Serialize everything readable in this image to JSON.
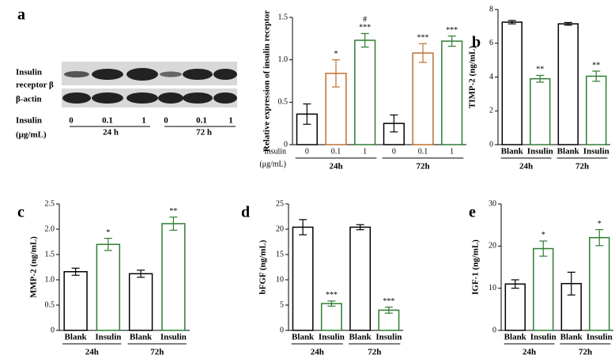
{
  "blot": {
    "label": "a",
    "row_labels": [
      "Insulin",
      "receptor β",
      "β-actin"
    ],
    "x_label": [
      "Insulin",
      "(μg/mL)"
    ],
    "lanes": [
      "0",
      "0.1",
      "1",
      "0",
      "0.1",
      "1"
    ],
    "groups": [
      "24 h",
      "72 h"
    ]
  },
  "chart_data": [
    {
      "type": "bar",
      "y_label": "Relative expression of insulin receptor",
      "x_label": [
        "Insulin",
        "(μg/mL)"
      ],
      "categories": [
        "0",
        "0.1",
        "1",
        "0",
        "0.1",
        "1"
      ],
      "groups": [
        "24h",
        "72h"
      ],
      "values": [
        0.36,
        0.84,
        1.23,
        0.25,
        1.08,
        1.22
      ],
      "errors": [
        0.12,
        0.16,
        0.08,
        0.1,
        0.11,
        0.06
      ],
      "colors": [
        "#000000",
        "#c0702d",
        "#2e7d32",
        "#000000",
        "#c0702d",
        "#2e7d32"
      ],
      "significance": [
        null,
        [
          "*"
        ],
        [
          "#",
          "***"
        ],
        null,
        [
          "***"
        ],
        [
          "***"
        ]
      ],
      "ylim": [
        0,
        1.5
      ],
      "yticks": [
        0,
        0.5,
        {
          "value": 1,
          "label": "1.0"
        },
        1.5
      ]
    },
    {
      "type": "bar",
      "label": "b",
      "y_label": "TIMP-2 (ng/mL)",
      "categories": [
        "Blank",
        "Insulin",
        "Blank",
        "Insulin"
      ],
      "groups": [
        "24h",
        "72h"
      ],
      "values": [
        7.25,
        3.9,
        7.15,
        4.05
      ],
      "errors": [
        0.1,
        0.2,
        0.08,
        0.3
      ],
      "colors": [
        "#000000",
        "#2e7d32",
        "#000000",
        "#2e7d32"
      ],
      "significance": [
        null,
        [
          "**"
        ],
        null,
        [
          "**"
        ]
      ],
      "ylim": [
        0,
        8
      ],
      "yticks": [
        0,
        2,
        4,
        6,
        8
      ]
    },
    {
      "type": "bar",
      "label": "c",
      "y_label": "MMP-2 (ng/mL)",
      "categories": [
        "Blank",
        "Insulin",
        "Blank",
        "Insulin"
      ],
      "groups": [
        "24h",
        "72h"
      ],
      "values": [
        1.16,
        1.7,
        1.12,
        2.11
      ],
      "errors": [
        0.07,
        0.12,
        0.07,
        0.13
      ],
      "colors": [
        "#000000",
        "#2e7d32",
        "#000000",
        "#2e7d32"
      ],
      "significance": [
        null,
        [
          "*"
        ],
        null,
        [
          "**"
        ]
      ],
      "ylim": [
        0,
        2.5
      ],
      "yticks": [
        0,
        0.5,
        {
          "value": 1,
          "label": "1.0"
        },
        1.5,
        {
          "value": 2,
          "label": "2.0"
        },
        2.5
      ]
    },
    {
      "type": "bar",
      "label": "d",
      "y_label": "bFGF (ng/mL)",
      "categories": [
        "Blank",
        "Insulin",
        "Blank",
        "Insulin"
      ],
      "groups": [
        "24h",
        "72h"
      ],
      "values": [
        20.4,
        5.3,
        20.4,
        4.0
      ],
      "errors": [
        1.5,
        0.5,
        0.5,
        0.6
      ],
      "colors": [
        "#000000",
        "#2e7d32",
        "#000000",
        "#2e7d32"
      ],
      "significance": [
        null,
        [
          "***"
        ],
        null,
        [
          "***"
        ]
      ],
      "ylim": [
        0,
        25
      ],
      "yticks": [
        0,
        5,
        10,
        15,
        20,
        25
      ]
    },
    {
      "type": "bar",
      "label": "e",
      "y_label": "IGF-1 (ng/mL)",
      "categories": [
        "Blank",
        "Insulin",
        "Blank",
        "Insulin"
      ],
      "groups": [
        "24h",
        "72h"
      ],
      "values": [
        11,
        19.4,
        11.1,
        22
      ],
      "errors": [
        1,
        1.8,
        2.7,
        1.9
      ],
      "colors": [
        "#000000",
        "#2e7d32",
        "#000000",
        "#2e7d32"
      ],
      "significance": [
        null,
        [
          "*"
        ],
        null,
        [
          "*"
        ]
      ],
      "ylim": [
        0,
        30
      ],
      "yticks": [
        0,
        10,
        20,
        30
      ]
    }
  ]
}
